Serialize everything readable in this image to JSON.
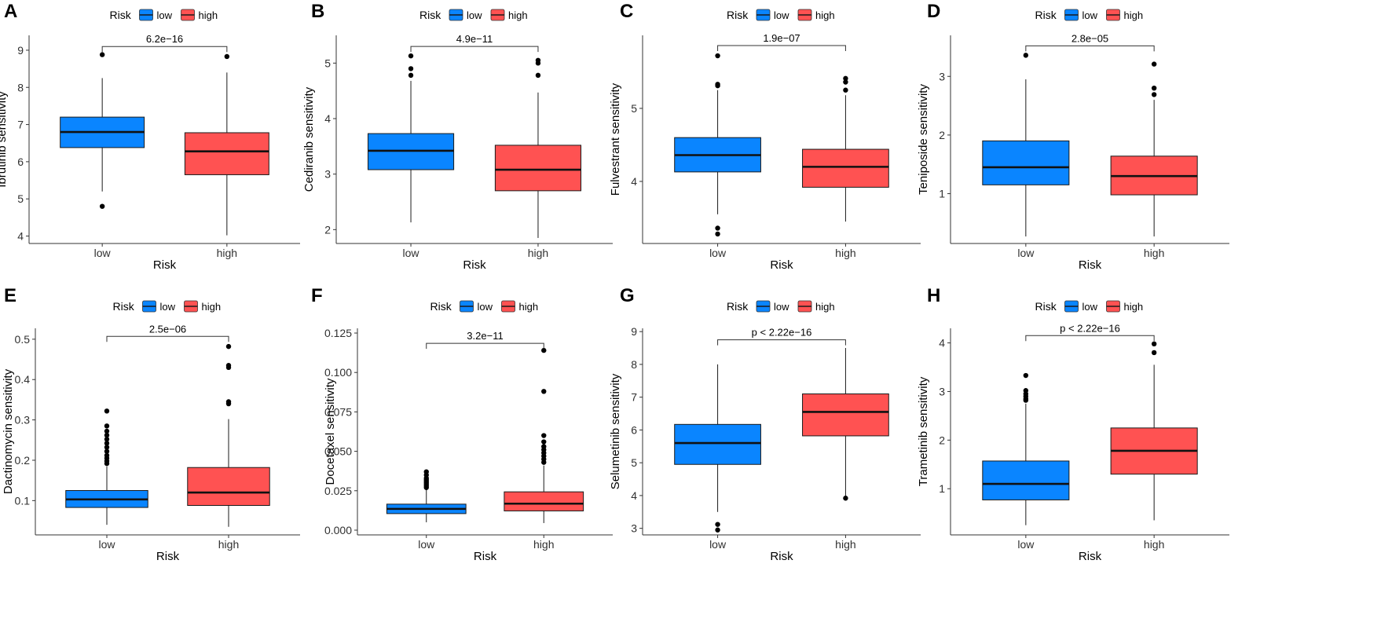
{
  "figure": {
    "colors": {
      "low": "#0A85FF",
      "high": "#FF5252",
      "axis": "#333333",
      "text": "#000000"
    }
  },
  "chart_data": [
    {
      "type": "boxplot",
      "panel": "A",
      "legend": {
        "title": "Risk",
        "entries": [
          "low",
          "high"
        ]
      },
      "categories": [
        "low",
        "high"
      ],
      "xlabel": "Risk",
      "ylabel": "Ibrutinib sensitivity",
      "ylim": [
        3.8,
        9.4
      ],
      "yticks": [
        4,
        5,
        6,
        7,
        8,
        9
      ],
      "ytick_labels": [
        "4",
        "5",
        "6",
        "7",
        "8",
        "9"
      ],
      "pvalue": "6.2e−16",
      "bracket_y": 9.1,
      "boxes": [
        {
          "name": "low",
          "min": 5.2,
          "q1": 6.38,
          "median": 6.8,
          "q3": 7.2,
          "max": 8.25,
          "outliers": [
            8.88,
            4.8
          ]
        },
        {
          "name": "high",
          "min": 4.02,
          "q1": 5.65,
          "median": 6.28,
          "q3": 6.78,
          "max": 8.4,
          "outliers": [
            8.83
          ]
        }
      ]
    },
    {
      "type": "boxplot",
      "panel": "B",
      "legend": {
        "title": "Risk",
        "entries": [
          "low",
          "high"
        ]
      },
      "categories": [
        "low",
        "high"
      ],
      "xlabel": "Risk",
      "ylabel": "Cediranib sensitivity",
      "ylim": [
        1.75,
        5.5
      ],
      "yticks": [
        2,
        3,
        4,
        5
      ],
      "ytick_labels": [
        "2",
        "3",
        "4",
        "5"
      ],
      "pvalue": "4.9e−11",
      "bracket_y": 5.3,
      "boxes": [
        {
          "name": "low",
          "min": 2.13,
          "q1": 3.08,
          "median": 3.42,
          "q3": 3.73,
          "max": 4.68,
          "outliers": [
            5.13,
            4.9,
            4.78
          ]
        },
        {
          "name": "high",
          "min": 1.85,
          "q1": 2.7,
          "median": 3.08,
          "q3": 3.52,
          "max": 4.47,
          "outliers": [
            5.05,
            5.0,
            4.78
          ]
        }
      ]
    },
    {
      "type": "boxplot",
      "panel": "C",
      "legend": {
        "title": "Risk",
        "entries": [
          "low",
          "high"
        ]
      },
      "categories": [
        "low",
        "high"
      ],
      "xlabel": "Risk",
      "ylabel": "Fulvestrant sensitivity",
      "ylim": [
        3.15,
        6.0
      ],
      "yticks": [
        4,
        5
      ],
      "ytick_labels": [
        "4",
        "5"
      ],
      "pvalue": "1.9e−07",
      "bracket_y": 5.86,
      "boxes": [
        {
          "name": "low",
          "min": 3.55,
          "q1": 4.13,
          "median": 4.36,
          "q3": 4.6,
          "max": 5.25,
          "outliers": [
            5.72,
            5.33,
            5.31,
            3.36,
            3.28
          ]
        },
        {
          "name": "high",
          "min": 3.45,
          "q1": 3.92,
          "median": 4.2,
          "q3": 4.44,
          "max": 5.18,
          "outliers": [
            5.41,
            5.36,
            5.25
          ]
        }
      ]
    },
    {
      "type": "boxplot",
      "panel": "D",
      "legend": {
        "title": "Risk",
        "entries": [
          "low",
          "high"
        ]
      },
      "categories": [
        "low",
        "high"
      ],
      "xlabel": "Risk",
      "ylabel": "Teniposide sensitivity",
      "ylim": [
        0.15,
        3.7
      ],
      "yticks": [
        1,
        2,
        3
      ],
      "ytick_labels": [
        "1",
        "2",
        "3"
      ],
      "pvalue": "2.8e−05",
      "bracket_y": 3.52,
      "boxes": [
        {
          "name": "low",
          "min": 0.27,
          "q1": 1.15,
          "median": 1.45,
          "q3": 1.9,
          "max": 2.95,
          "outliers": [
            3.36
          ]
        },
        {
          "name": "high",
          "min": 0.27,
          "q1": 0.98,
          "median": 1.3,
          "q3": 1.64,
          "max": 2.6,
          "outliers": [
            3.21,
            2.8,
            2.69
          ]
        }
      ]
    },
    {
      "type": "boxplot",
      "panel": "E",
      "legend": {
        "title": "Risk",
        "entries": [
          "low",
          "high"
        ]
      },
      "categories": [
        "low",
        "high"
      ],
      "xlabel": "Risk",
      "ylabel": "Dactinomycin sensitivity",
      "ylim": [
        0.015,
        0.527
      ],
      "yticks": [
        0.1,
        0.2,
        0.3,
        0.4,
        0.5
      ],
      "ytick_labels": [
        "0.1",
        "0.2",
        "0.3",
        "0.4",
        "0.5"
      ],
      "pvalue": "2.5e−06",
      "bracket_y": 0.507,
      "boxes": [
        {
          "name": "low",
          "min": 0.04,
          "q1": 0.083,
          "median": 0.103,
          "q3": 0.125,
          "max": 0.185,
          "outliers": [
            0.322,
            0.285,
            0.272,
            0.262,
            0.252,
            0.242,
            0.232,
            0.222,
            0.212,
            0.205,
            0.198,
            0.192
          ]
        },
        {
          "name": "high",
          "min": 0.035,
          "q1": 0.088,
          "median": 0.12,
          "q3": 0.182,
          "max": 0.302,
          "outliers": [
            0.482,
            0.435,
            0.43,
            0.345,
            0.34
          ]
        }
      ]
    },
    {
      "type": "boxplot",
      "panel": "F",
      "legend": {
        "title": "Risk",
        "entries": [
          "low",
          "high"
        ]
      },
      "categories": [
        "low",
        "high"
      ],
      "xlabel": "Risk",
      "ylabel": "Docetaxel sensitivity",
      "ylim": [
        -0.003,
        0.128
      ],
      "yticks": [
        0.0,
        0.025,
        0.05,
        0.075,
        0.1,
        0.125
      ],
      "ytick_labels": [
        "0.000",
        "0.025",
        "0.050",
        "0.075",
        "0.100",
        "0.125"
      ],
      "pvalue": "3.2e−11",
      "bracket_y": 0.1185,
      "boxes": [
        {
          "name": "low",
          "min": 0.005,
          "q1": 0.0105,
          "median": 0.0135,
          "q3": 0.0165,
          "max": 0.026,
          "outliers": [
            0.037,
            0.035,
            0.033,
            0.032,
            0.031,
            0.03,
            0.029,
            0.028,
            0.027
          ]
        },
        {
          "name": "high",
          "min": 0.0045,
          "q1": 0.0122,
          "median": 0.0168,
          "q3": 0.0243,
          "max": 0.041,
          "outliers": [
            0.114,
            0.088,
            0.06,
            0.056,
            0.053,
            0.051,
            0.049,
            0.047,
            0.045,
            0.043
          ]
        }
      ]
    },
    {
      "type": "boxplot",
      "panel": "G",
      "legend": {
        "title": "Risk",
        "entries": [
          "low",
          "high"
        ]
      },
      "categories": [
        "low",
        "high"
      ],
      "xlabel": "Risk",
      "ylabel": "Selumetinib sensitivity",
      "ylim": [
        2.8,
        9.1
      ],
      "yticks": [
        3,
        4,
        5,
        6,
        7,
        8,
        9
      ],
      "ytick_labels": [
        "3",
        "4",
        "5",
        "6",
        "7",
        "8",
        "9"
      ],
      "pvalue": "p < 2.22e−16",
      "bracket_y": 8.75,
      "boxes": [
        {
          "name": "low",
          "min": 3.5,
          "q1": 4.95,
          "median": 5.6,
          "q3": 6.17,
          "max": 8.0,
          "outliers": [
            3.12,
            2.95
          ]
        },
        {
          "name": "high",
          "min": 3.95,
          "q1": 5.82,
          "median": 6.55,
          "q3": 7.1,
          "max": 8.5,
          "outliers": [
            3.92
          ]
        }
      ]
    },
    {
      "type": "boxplot",
      "panel": "H",
      "legend": {
        "title": "Risk",
        "entries": [
          "low",
          "high"
        ]
      },
      "categories": [
        "low",
        "high"
      ],
      "xlabel": "Risk",
      "ylabel": "Trametinib sensitivity",
      "ylim": [
        0.05,
        4.3
      ],
      "yticks": [
        1,
        2,
        3,
        4
      ],
      "ytick_labels": [
        "1",
        "2",
        "3",
        "4"
      ],
      "pvalue": "p < 2.22e−16",
      "bracket_y": 4.15,
      "boxes": [
        {
          "name": "low",
          "min": 0.25,
          "q1": 0.77,
          "median": 1.1,
          "q3": 1.57,
          "max": 2.75,
          "outliers": [
            3.33,
            3.02,
            2.95,
            2.9,
            2.85,
            2.82
          ]
        },
        {
          "name": "high",
          "min": 0.35,
          "q1": 1.3,
          "median": 1.78,
          "q3": 2.25,
          "max": 3.55,
          "outliers": [
            3.98,
            3.8
          ]
        }
      ]
    }
  ]
}
